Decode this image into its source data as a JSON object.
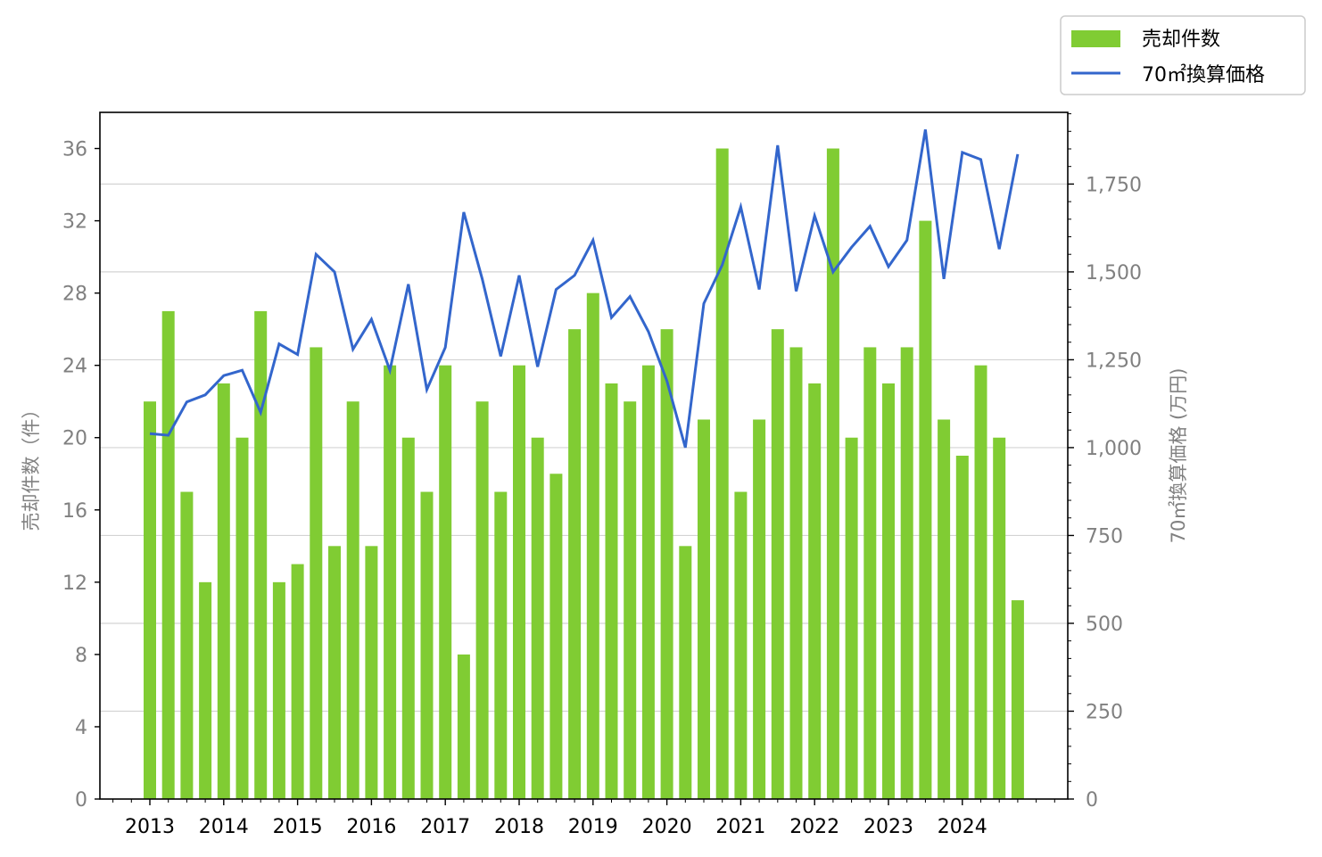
{
  "chart_data": {
    "type": "bar",
    "x_ticks": [
      "2013",
      "2014",
      "2015",
      "2016",
      "2017",
      "2018",
      "2019",
      "2020",
      "2021",
      "2022",
      "2023",
      "2024"
    ],
    "left_axis": {
      "label": "売却件数（件）",
      "ylim": [
        0,
        38
      ],
      "ticks": [
        0,
        4,
        8,
        12,
        16,
        20,
        24,
        28,
        32,
        36
      ]
    },
    "right_axis": {
      "label": "70㎡換算価格 (万円)",
      "ylim": [
        0,
        1954
      ],
      "ticks": [
        0,
        250,
        500,
        750,
        1000,
        1250,
        1500,
        1750
      ],
      "tick_labels": [
        "0",
        "250",
        "500",
        "750",
        "1,000",
        "1,250",
        "1,500",
        "1,750"
      ]
    },
    "grid": "horizontal, right axis",
    "legend": {
      "placement": "top-right, outside plot"
    },
    "series": [
      {
        "name": "売却件数",
        "kind": "bar",
        "axis": "left",
        "color": "#80cc33",
        "values": [
          22,
          27,
          17,
          12,
          23,
          20,
          27,
          12,
          13,
          25,
          14,
          22,
          14,
          24,
          20,
          17,
          24,
          8,
          22,
          17,
          24,
          20,
          18,
          26,
          28,
          23,
          22,
          24,
          26,
          14,
          21,
          36,
          17,
          21,
          26,
          25,
          23,
          36,
          20,
          25,
          23,
          25,
          32,
          21,
          19,
          24,
          20,
          11
        ]
      },
      {
        "name": "70㎡換算価格",
        "kind": "line",
        "axis": "right",
        "color": "#3366cc",
        "values": [
          1040,
          1035,
          1130,
          1150,
          1205,
          1220,
          1100,
          1295,
          1265,
          1550,
          1500,
          1280,
          1365,
          1220,
          1465,
          1165,
          1285,
          1670,
          1480,
          1260,
          1490,
          1230,
          1450,
          1490,
          1590,
          1370,
          1430,
          1330,
          1190,
          1000,
          1410,
          1520,
          1685,
          1450,
          1860,
          1445,
          1660,
          1500,
          1570,
          1630,
          1515,
          1590,
          1905,
          1480,
          1840,
          1820,
          1565,
          1835
        ]
      }
    ]
  }
}
